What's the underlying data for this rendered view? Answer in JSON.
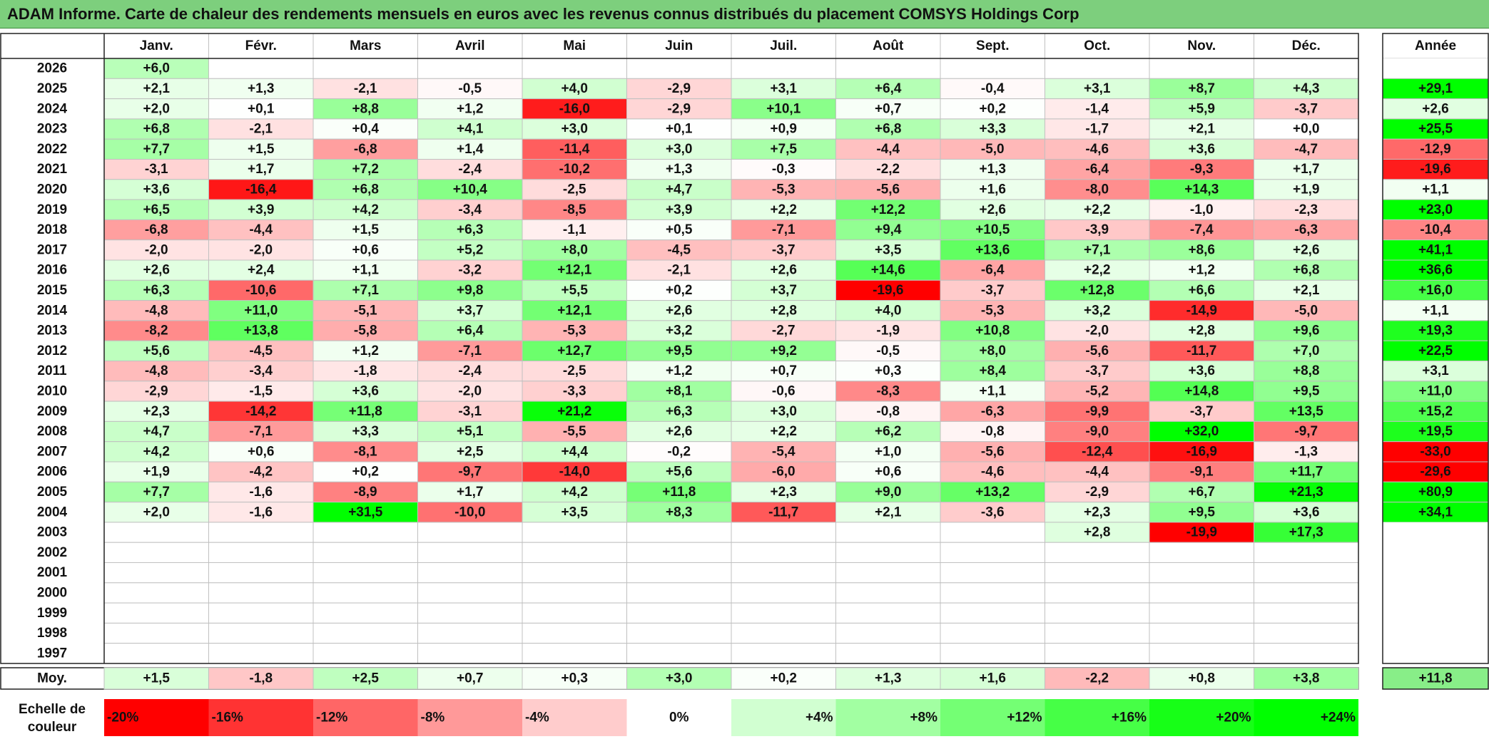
{
  "title": "ADAM Informe. Carte de chaleur des rendements mensuels en euros avec les revenus connus distribués du placement COMSYS Holdings Corp",
  "months": [
    "Janv.",
    "Févr.",
    "Mars",
    "Avril",
    "Mai",
    "Juin",
    "Juil.",
    "Août",
    "Sept.",
    "Oct.",
    "Nov.",
    "Déc."
  ],
  "year_header": "Année",
  "avg_label": "Moy.",
  "scale_label_line1": "Echelle de",
  "scale_label_line2": "couleur",
  "colors": {
    "negative_max": "#ff0000",
    "neutral": "#ffffff",
    "positive_max": "#00ff00",
    "title_bg": "#7dcf7d",
    "grid": "#c0c0c0"
  },
  "chart_data": {
    "type": "heatmap",
    "title": "ADAM Informe. Carte de chaleur des rendements mensuels en euros avec les revenus connus distribués du placement COMSYS Holdings Corp",
    "columns": [
      "Janv.",
      "Févr.",
      "Mars",
      "Avril",
      "Mai",
      "Juin",
      "Juil.",
      "Août",
      "Sept.",
      "Oct.",
      "Nov.",
      "Déc."
    ],
    "rows": [
      {
        "year": "2026",
        "months": [
          "+6,0",
          "",
          "",
          "",
          "",
          "",
          "",
          "",
          "",
          "",
          "",
          ""
        ],
        "annual": ""
      },
      {
        "year": "2025",
        "months": [
          "+2,1",
          "+1,3",
          "-2,1",
          "-0,5",
          "+4,0",
          "-2,9",
          "+3,1",
          "+6,4",
          "-0,4",
          "+3,1",
          "+8,7",
          "+4,3"
        ],
        "annual": "+29,1"
      },
      {
        "year": "2024",
        "months": [
          "+2,0",
          "+0,1",
          "+8,8",
          "+1,2",
          "-16,0",
          "-2,9",
          "+10,1",
          "+0,7",
          "+0,2",
          "-1,4",
          "+5,9",
          "-3,7"
        ],
        "annual": "+2,6"
      },
      {
        "year": "2023",
        "months": [
          "+6,8",
          "-2,1",
          "+0,4",
          "+4,1",
          "+3,0",
          "+0,1",
          "+0,9",
          "+6,8",
          "+3,3",
          "-1,7",
          "+2,1",
          "+0,0"
        ],
        "annual": "+25,5"
      },
      {
        "year": "2022",
        "months": [
          "+7,7",
          "+1,5",
          "-6,8",
          "+1,4",
          "-11,4",
          "+3,0",
          "+7,5",
          "-4,4",
          "-5,0",
          "-4,6",
          "+3,6",
          "-4,7"
        ],
        "annual": "-12,9"
      },
      {
        "year": "2021",
        "months": [
          "-3,1",
          "+1,7",
          "+7,2",
          "-2,4",
          "-10,2",
          "+1,3",
          "-0,3",
          "-2,2",
          "+1,3",
          "-6,4",
          "-9,3",
          "+1,7"
        ],
        "annual": "-19,6"
      },
      {
        "year": "2020",
        "months": [
          "+3,6",
          "-16,4",
          "+6,8",
          "+10,4",
          "-2,5",
          "+4,7",
          "-5,3",
          "-5,6",
          "+1,6",
          "-8,0",
          "+14,3",
          "+1,9"
        ],
        "annual": "+1,1"
      },
      {
        "year": "2019",
        "months": [
          "+6,5",
          "+3,9",
          "+4,2",
          "-3,4",
          "-8,5",
          "+3,9",
          "+2,2",
          "+12,2",
          "+2,6",
          "+2,2",
          "-1,0",
          "-2,3"
        ],
        "annual": "+23,0"
      },
      {
        "year": "2018",
        "months": [
          "-6,8",
          "-4,4",
          "+1,5",
          "+6,3",
          "-1,1",
          "+0,5",
          "-7,1",
          "+9,4",
          "+10,5",
          "-3,9",
          "-7,4",
          "-6,3"
        ],
        "annual": "-10,4"
      },
      {
        "year": "2017",
        "months": [
          "-2,0",
          "-2,0",
          "+0,6",
          "+5,2",
          "+8,0",
          "-4,5",
          "-3,7",
          "+3,5",
          "+13,6",
          "+7,1",
          "+8,6",
          "+2,6"
        ],
        "annual": "+41,1"
      },
      {
        "year": "2016",
        "months": [
          "+2,6",
          "+2,4",
          "+1,1",
          "-3,2",
          "+12,1",
          "-2,1",
          "+2,6",
          "+14,6",
          "-6,4",
          "+2,2",
          "+1,2",
          "+6,8"
        ],
        "annual": "+36,6"
      },
      {
        "year": "2015",
        "months": [
          "+6,3",
          "-10,6",
          "+7,1",
          "+9,8",
          "+5,5",
          "+0,2",
          "+3,7",
          "-19,6",
          "-3,7",
          "+12,8",
          "+6,6",
          "+2,1"
        ],
        "annual": "+16,0"
      },
      {
        "year": "2014",
        "months": [
          "-4,8",
          "+11,0",
          "-5,1",
          "+3,7",
          "+12,1",
          "+2,6",
          "+2,8",
          "+4,0",
          "-5,3",
          "+3,2",
          "-14,9",
          "-5,0"
        ],
        "annual": "+1,1"
      },
      {
        "year": "2013",
        "months": [
          "-8,2",
          "+13,8",
          "-5,8",
          "+6,4",
          "-5,3",
          "+3,2",
          "-2,7",
          "-1,9",
          "+10,8",
          "-2,0",
          "+2,8",
          "+9,6"
        ],
        "annual": "+19,3"
      },
      {
        "year": "2012",
        "months": [
          "+5,6",
          "-4,5",
          "+1,2",
          "-7,1",
          "+12,7",
          "+9,5",
          "+9,2",
          "-0,5",
          "+8,0",
          "-5,6",
          "-11,7",
          "+7,0"
        ],
        "annual": "+22,5"
      },
      {
        "year": "2011",
        "months": [
          "-4,8",
          "-3,4",
          "-1,8",
          "-2,4",
          "-2,5",
          "+1,2",
          "+0,7",
          "+0,3",
          "+8,4",
          "-3,7",
          "+3,6",
          "+8,8"
        ],
        "annual": "+3,1"
      },
      {
        "year": "2010",
        "months": [
          "-2,9",
          "-1,5",
          "+3,6",
          "-2,0",
          "-3,3",
          "+8,1",
          "-0,6",
          "-8,3",
          "+1,1",
          "-5,2",
          "+14,8",
          "+9,5"
        ],
        "annual": "+11,0"
      },
      {
        "year": "2009",
        "months": [
          "+2,3",
          "-14,2",
          "+11,8",
          "-3,1",
          "+21,2",
          "+6,3",
          "+3,0",
          "-0,8",
          "-6,3",
          "-9,9",
          "-3,7",
          "+13,5"
        ],
        "annual": "+15,2"
      },
      {
        "year": "2008",
        "months": [
          "+4,7",
          "-7,1",
          "+3,3",
          "+5,1",
          "-5,5",
          "+2,6",
          "+2,2",
          "+6,2",
          "-0,8",
          "-9,0",
          "+32,0",
          "-9,7"
        ],
        "annual": "+19,5"
      },
      {
        "year": "2007",
        "months": [
          "+4,2",
          "+0,6",
          "-8,1",
          "+2,5",
          "+4,4",
          "-0,2",
          "-5,4",
          "+1,0",
          "-5,6",
          "-12,4",
          "-16,9",
          "-1,3"
        ],
        "annual": "-33,0"
      },
      {
        "year": "2006",
        "months": [
          "+1,9",
          "-4,2",
          "+0,2",
          "-9,7",
          "-14,0",
          "+5,6",
          "-6,0",
          "+0,6",
          "-4,6",
          "-4,4",
          "-9,1",
          "+11,7"
        ],
        "annual": "-29,6"
      },
      {
        "year": "2005",
        "months": [
          "+7,7",
          "-1,6",
          "-8,9",
          "+1,7",
          "+4,2",
          "+11,8",
          "+2,3",
          "+9,0",
          "+13,2",
          "-2,9",
          "+6,7",
          "+21,3"
        ],
        "annual": "+80,9"
      },
      {
        "year": "2004",
        "months": [
          "+2,0",
          "-1,6",
          "+31,5",
          "-10,0",
          "+3,5",
          "+8,3",
          "-11,7",
          "+2,1",
          "-3,6",
          "+2,3",
          "+9,5",
          "+3,6"
        ],
        "annual": "+34,1"
      },
      {
        "year": "2003",
        "months": [
          "",
          "",
          "",
          "",
          "",
          "",
          "",
          "",
          "",
          "+2,8",
          "-19,9",
          "+17,3"
        ],
        "annual": ""
      },
      {
        "year": "2002",
        "months": [
          "",
          "",
          "",
          "",
          "",
          "",
          "",
          "",
          "",
          "",
          "",
          ""
        ],
        "annual": ""
      },
      {
        "year": "2001",
        "months": [
          "",
          "",
          "",
          "",
          "",
          "",
          "",
          "",
          "",
          "",
          "",
          ""
        ],
        "annual": ""
      },
      {
        "year": "2000",
        "months": [
          "",
          "",
          "",
          "",
          "",
          "",
          "",
          "",
          "",
          "",
          "",
          ""
        ],
        "annual": ""
      },
      {
        "year": "1999",
        "months": [
          "",
          "",
          "",
          "",
          "",
          "",
          "",
          "",
          "",
          "",
          "",
          ""
        ],
        "annual": ""
      },
      {
        "year": "1998",
        "months": [
          "",
          "",
          "",
          "",
          "",
          "",
          "",
          "",
          "",
          "",
          "",
          ""
        ],
        "annual": ""
      },
      {
        "year": "1997",
        "months": [
          "",
          "",
          "",
          "",
          "",
          "",
          "",
          "",
          "",
          "",
          "",
          ""
        ],
        "annual": ""
      }
    ],
    "average": {
      "months": [
        "+1,5",
        "-1,8",
        "+2,5",
        "+0,7",
        "+0,3",
        "+3,0",
        "+0,2",
        "+1,3",
        "+1,6",
        "-2,2",
        "+0,8",
        "+3,8"
      ],
      "annual": "+11,8"
    },
    "color_scale": [
      "-20%",
      "-16%",
      "-12%",
      "-8%",
      "-4%",
      "0%",
      "+4%",
      "+8%",
      "+12%",
      "+16%",
      "+20%",
      "+24%"
    ],
    "color_scale_range": [
      -20,
      24
    ]
  }
}
